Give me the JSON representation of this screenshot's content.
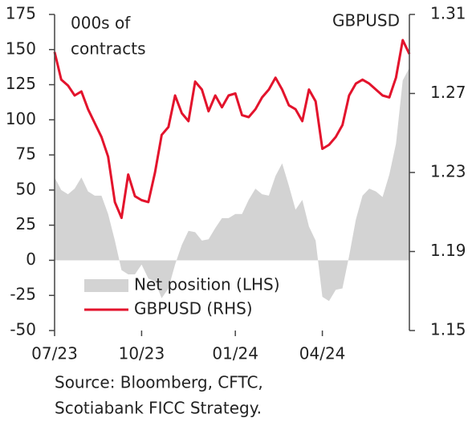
{
  "chart_data": {
    "type": "area_line",
    "ylabel": [
      "000s of",
      "contracts"
    ],
    "y2label": "GBPUSD",
    "source": [
      "Source: Bloomberg, CFTC,",
      "Scotiabank FICC Strategy."
    ],
    "categories": [
      "07/23",
      null,
      null,
      null,
      null,
      null,
      null,
      null,
      null,
      null,
      null,
      null,
      null,
      "10/23",
      null,
      null,
      null,
      null,
      null,
      null,
      null,
      null,
      null,
      null,
      null,
      null,
      null,
      "01/24",
      null,
      null,
      null,
      null,
      null,
      null,
      null,
      null,
      null,
      null,
      null,
      null,
      "04/24",
      null,
      null,
      null,
      null,
      null,
      null,
      null,
      null,
      null,
      null,
      null,
      null,
      null
    ],
    "series": [
      {
        "name": "Net position (LHS)",
        "color": "#d3d3d3",
        "axis": "y",
        "values": [
          59,
          50,
          47,
          51,
          59,
          49,
          46,
          46,
          33,
          14,
          -7,
          -10,
          -10,
          -3,
          -13,
          -15,
          -27,
          -20,
          -3,
          11,
          21,
          20,
          14,
          15,
          23,
          30,
          30,
          33,
          33,
          43,
          51,
          47,
          46,
          60,
          69,
          53,
          36,
          43,
          24,
          14,
          -26,
          -29,
          -21,
          -20,
          3,
          29,
          46,
          51,
          49,
          45,
          61,
          83,
          128,
          137
        ]
      },
      {
        "name": "GBPUSD (RHS)",
        "color": "#e3132c",
        "axis": "y2",
        "values": [
          1.291,
          1.277,
          1.274,
          1.269,
          1.271,
          1.262,
          1.255,
          1.248,
          1.238,
          1.215,
          1.207,
          1.229,
          1.218,
          1.216,
          1.215,
          1.23,
          1.249,
          1.253,
          1.269,
          1.26,
          1.256,
          1.276,
          1.272,
          1.261,
          1.269,
          1.263,
          1.269,
          1.27,
          1.259,
          1.258,
          1.262,
          1.268,
          1.272,
          1.278,
          1.272,
          1.264,
          1.262,
          1.256,
          1.272,
          1.266,
          1.242,
          1.244,
          1.248,
          1.254,
          1.269,
          1.275,
          1.277,
          1.275,
          1.272,
          1.269,
          1.268,
          1.278,
          1.297,
          1.29
        ]
      }
    ],
    "ylim": [
      -50,
      175
    ],
    "yticks": [
      -50,
      -25,
      0,
      25,
      50,
      75,
      100,
      125,
      150,
      175
    ],
    "y2lim": [
      1.15,
      1.31
    ],
    "y2ticks": [
      1.15,
      1.19,
      1.23,
      1.27,
      1.31
    ],
    "legend": "lower-left"
  }
}
